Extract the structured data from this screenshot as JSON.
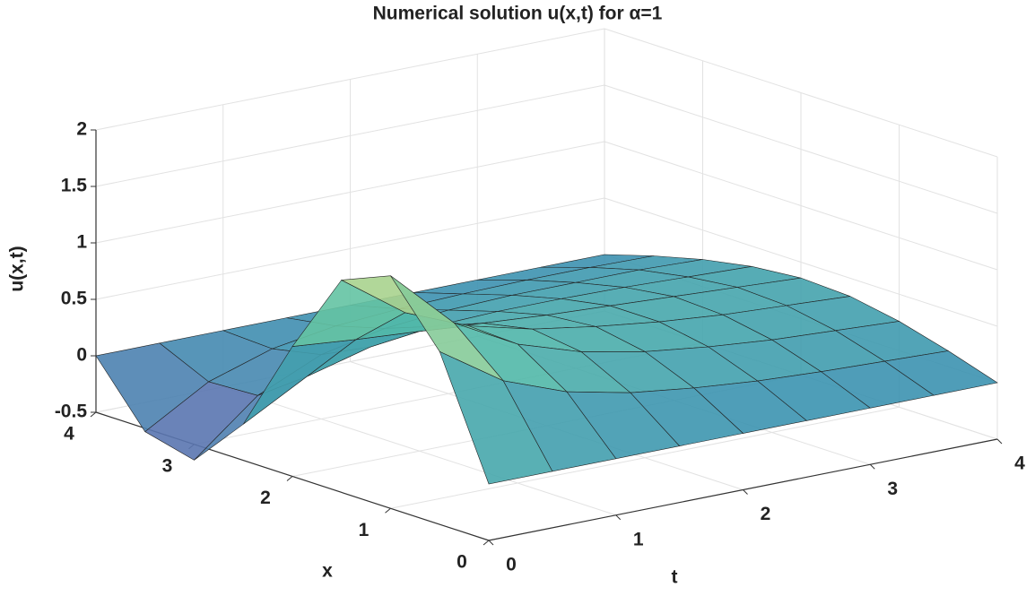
{
  "chart_data": {
    "type": "surface",
    "title": "Numerical solution u(x,t) for α=1",
    "x_label": "x",
    "t_label": "t",
    "z_label": "u(x,t)",
    "x": [
      0,
      0.5,
      1,
      1.5,
      2,
      2.5,
      3,
      3.5,
      4
    ],
    "t": [
      0,
      0.5,
      1,
      1.5,
      2,
      2.5,
      3,
      3.5,
      4
    ],
    "z": [
      [
        0,
        1.03,
        1.56,
        1.38,
        0.65,
        -0.18,
        -0.64,
        -0.53,
        0
      ],
      [
        0,
        0.66,
        1.03,
        0.98,
        0.6,
        0.13,
        -0.18,
        -0.2,
        0
      ],
      [
        0,
        0.45,
        0.73,
        0.75,
        0.56,
        0.28,
        0.07,
        -0.02,
        0
      ],
      [
        0,
        0.33,
        0.55,
        0.61,
        0.52,
        0.35,
        0.19,
        0.07,
        0
      ],
      [
        0,
        0.26,
        0.44,
        0.52,
        0.48,
        0.37,
        0.24,
        0.11,
        0
      ],
      [
        0,
        0.21,
        0.37,
        0.45,
        0.45,
        0.37,
        0.26,
        0.13,
        0
      ],
      [
        0,
        0.18,
        0.32,
        0.4,
        0.42,
        0.36,
        0.26,
        0.14,
        0
      ],
      [
        0,
        0.16,
        0.29,
        0.37,
        0.39,
        0.34,
        0.26,
        0.14,
        0
      ],
      [
        0,
        0.14,
        0.26,
        0.34,
        0.36,
        0.32,
        0.24,
        0.13,
        0
      ]
    ],
    "xlim": [
      0,
      4
    ],
    "xticks": [
      0,
      1,
      2,
      3,
      4
    ],
    "tlim": [
      0,
      4
    ],
    "tticks": [
      0,
      1,
      2,
      3,
      4
    ],
    "zlim": [
      -0.5,
      2
    ],
    "zticks": [
      -0.5,
      0,
      0.5,
      1,
      1.5,
      2
    ],
    "grid": true,
    "colormap": [
      "#6b66b0",
      "#3b93b0",
      "#55bfa8",
      "#e9e27a"
    ]
  }
}
